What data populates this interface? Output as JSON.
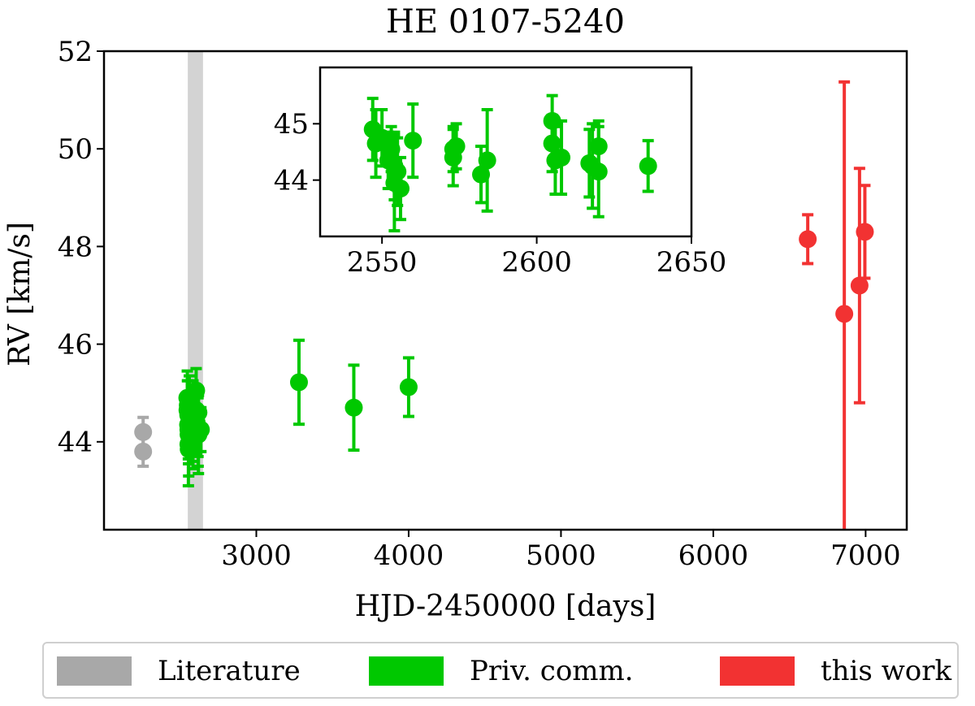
{
  "chart_data": [
    {
      "type": "scatter",
      "title": "HE 0107-5240",
      "xlabel": "HJD-2450000 [days]",
      "ylabel": "RV [km/s]",
      "xlim": [
        2000,
        7270
      ],
      "ylim": [
        42.2,
        52
      ],
      "xticks": [
        3000,
        4000,
        5000,
        6000,
        7000
      ],
      "yticks": [
        44,
        46,
        48,
        50,
        52
      ],
      "grid": false,
      "highlight_band": {
        "x": [
          2550,
          2650
        ],
        "color": "#d3d3d3"
      },
      "series": [
        {
          "name": "Literature",
          "color": "#a8a8a8",
          "points": [
            {
              "x": 2257,
              "y": 44.2,
              "err": 0.3
            },
            {
              "x": 2257,
              "y": 43.8,
              "err": 0.3
            }
          ]
        },
        {
          "name": "Priv. comm.",
          "color": "#00c800",
          "points": [
            {
              "x": 2547,
              "y": 44.9,
              "err": 0.55
            },
            {
              "x": 2548,
              "y": 44.65,
              "err": 0.6
            },
            {
              "x": 2550,
              "y": 44.75,
              "err": 0.5
            },
            {
              "x": 2552,
              "y": 44.35,
              "err": 0.5
            },
            {
              "x": 2553,
              "y": 44.55,
              "err": 0.4
            },
            {
              "x": 2554,
              "y": 44.25,
              "err": 0.6
            },
            {
              "x": 2554,
              "y": 43.95,
              "err": 0.85
            },
            {
              "x": 2555,
              "y": 44.15,
              "err": 0.6
            },
            {
              "x": 2556,
              "y": 43.85,
              "err": 0.55
            },
            {
              "x": 2560,
              "y": 44.7,
              "err": 0.65
            },
            {
              "x": 2573,
              "y": 44.55,
              "err": 0.4
            },
            {
              "x": 2573,
              "y": 44.4,
              "err": 0.5
            },
            {
              "x": 2574,
              "y": 44.6,
              "err": 0.4
            },
            {
              "x": 2582,
              "y": 44.1,
              "err": 0.5
            },
            {
              "x": 2584,
              "y": 44.35,
              "err": 0.9
            },
            {
              "x": 2605,
              "y": 45.05,
              "err": 0.45
            },
            {
              "x": 2605,
              "y": 44.65,
              "err": 0.5
            },
            {
              "x": 2606,
              "y": 44.35,
              "err": 0.6
            },
            {
              "x": 2608,
              "y": 44.4,
              "err": 0.65
            },
            {
              "x": 2617,
              "y": 44.3,
              "err": 0.6
            },
            {
              "x": 2618,
              "y": 44.25,
              "err": 0.75
            },
            {
              "x": 2620,
              "y": 44.6,
              "err": 0.45
            },
            {
              "x": 2620,
              "y": 44.15,
              "err": 0.8
            },
            {
              "x": 2636,
              "y": 44.25,
              "err": 0.45
            },
            {
              "x": 3280,
              "y": 45.22,
              "err": 0.86
            },
            {
              "x": 3640,
              "y": 44.7,
              "err": 0.87
            },
            {
              "x": 4000,
              "y": 45.12,
              "err": 0.6
            }
          ]
        },
        {
          "name": "this work",
          "color": "#f23232",
          "points": [
            {
              "x": 6620,
              "y": 48.15,
              "err": 0.5
            },
            {
              "x": 6860,
              "y": 46.62,
              "err": 4.75
            },
            {
              "x": 6960,
              "y": 47.2,
              "err": 2.4
            },
            {
              "x": 6995,
              "y": 48.3,
              "err": 0.95
            }
          ]
        }
      ]
    },
    {
      "type": "scatter",
      "title": "",
      "xlim": [
        2530,
        2650
      ],
      "ylim": [
        43.0,
        46.0
      ],
      "xticks": [
        2550,
        2600,
        2650
      ],
      "yticks": [
        44,
        45
      ],
      "inset_of": "HE 0107-5240",
      "series_ref": "Priv. comm."
    }
  ],
  "legend": {
    "placement": "bottom",
    "items": [
      {
        "label": "Literature",
        "color": "#a8a8a8"
      },
      {
        "label": "Priv. comm.",
        "color": "#00c800"
      },
      {
        "label": "this work",
        "color": "#f23232"
      }
    ]
  }
}
